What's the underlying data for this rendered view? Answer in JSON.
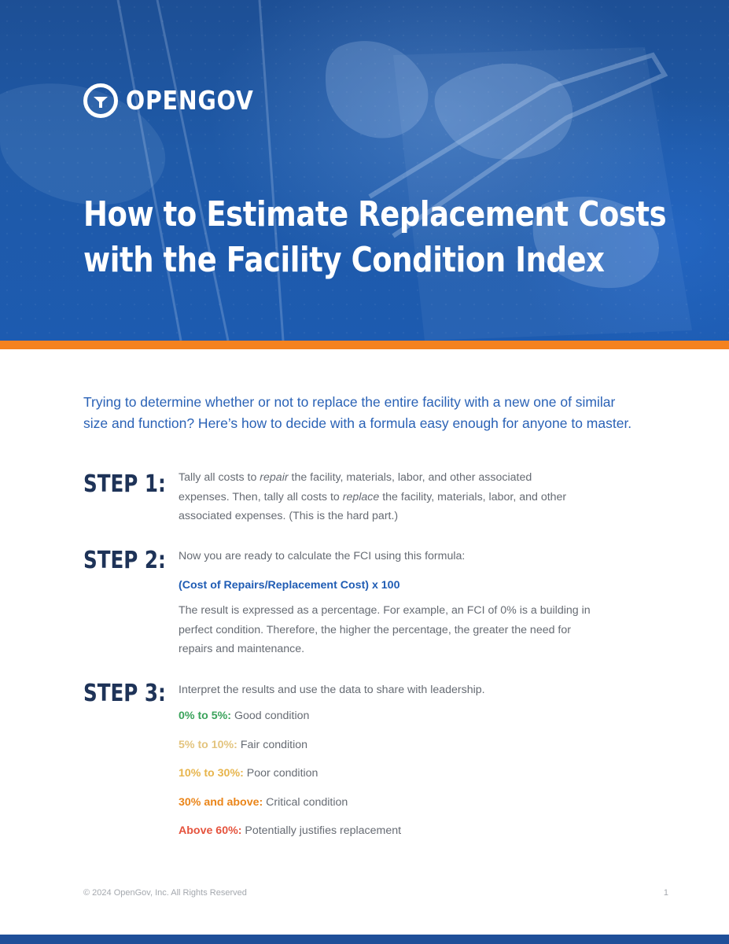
{
  "header": {
    "logo_text": "OPENGOV",
    "title_line1": "How to Estimate Replacement Costs",
    "title_line2": "with the Facility Condition Index"
  },
  "intro": {
    "line1": "Trying to determine whether or not to replace the entire facility with a new one of similar",
    "line2": "size and function? Here’s how to decide with a formula easy enough for anyone to master."
  },
  "steps": [
    {
      "label": "STEP 1:",
      "l1_a": "Tally all costs to ",
      "l1_em": "repair",
      "l1_b": " the facility, materials, labor, and other associated",
      "l2_a": "expenses. Then, tally all costs to ",
      "l2_em": "replace",
      "l2_b": " the facility, materials, labor, and other",
      "l3": "associated expenses. (This is the hard part.)"
    },
    {
      "label": "STEP 2:",
      "intro": "Now you are ready to calculate the FCI using this formula:",
      "formula": "(Cost of Repairs/Replacement Cost) x 100",
      "result_lines": [
        "The result is expressed as a percentage. For example, an FCI of 0% is a building in",
        "perfect condition. Therefore, the higher the percentage, the greater the need for",
        "repairs and maintenance."
      ]
    },
    {
      "label": "STEP 3:",
      "intro": "Interpret the results and use the data to share with leadership.",
      "ranges": [
        {
          "range": "0% to 5%:",
          "description": " Good condition",
          "color": "#3aa35b"
        },
        {
          "range": "5% to 10%:",
          "description": " Fair condition",
          "color": "#e3c47e"
        },
        {
          "range": "10% to 30%:",
          "description": " Poor condition",
          "color": "#e7b54d"
        },
        {
          "range": "30% and above:",
          "description": " Critical condition",
          "color": "#ea8519"
        },
        {
          "range": "Above 60%:",
          "description": " Potentially justifies replacement",
          "color": "#e5533d"
        }
      ]
    }
  ],
  "footer": {
    "copyright": "© 2024 OpenGov, Inc. All Rights Reserved",
    "page_number": "1"
  },
  "colors": {
    "hero_blue": "#1f5aa8",
    "accent_orange": "#f4821f",
    "step_navy": "#1e3358",
    "link_blue": "#1f5cb4"
  }
}
